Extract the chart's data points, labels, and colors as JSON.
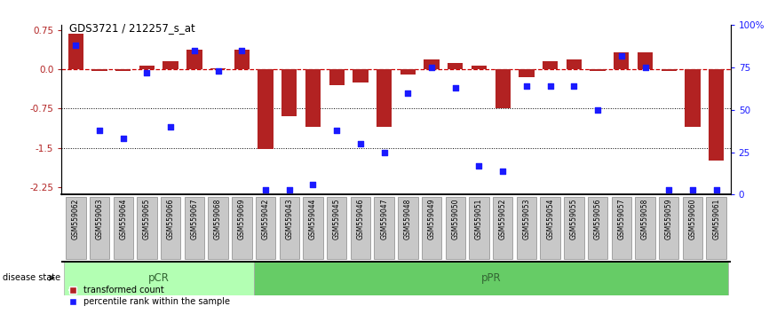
{
  "title": "GDS3721 / 212257_s_at",
  "samples": [
    "GSM559062",
    "GSM559063",
    "GSM559064",
    "GSM559065",
    "GSM559066",
    "GSM559067",
    "GSM559068",
    "GSM559069",
    "GSM559042",
    "GSM559043",
    "GSM559044",
    "GSM559045",
    "GSM559046",
    "GSM559047",
    "GSM559048",
    "GSM559049",
    "GSM559050",
    "GSM559051",
    "GSM559052",
    "GSM559053",
    "GSM559054",
    "GSM559055",
    "GSM559056",
    "GSM559057",
    "GSM559058",
    "GSM559059",
    "GSM559060",
    "GSM559061"
  ],
  "bar_values": [
    0.68,
    -0.03,
    -0.03,
    0.08,
    0.15,
    0.38,
    0.02,
    0.38,
    -1.52,
    -0.9,
    -1.1,
    -0.3,
    -0.25,
    -1.1,
    -0.1,
    0.2,
    0.13,
    0.07,
    -0.75,
    -0.15,
    0.15,
    0.2,
    -0.03,
    0.32,
    0.32,
    -0.03,
    -1.1,
    -1.75
  ],
  "blue_values": [
    88,
    38,
    33,
    72,
    40,
    85,
    73,
    85,
    3,
    3,
    6,
    38,
    30,
    25,
    60,
    75,
    63,
    17,
    14,
    64,
    64,
    64,
    50,
    82,
    75,
    3,
    3,
    3
  ],
  "pCR_count": 8,
  "group1_label": "pCR",
  "group2_label": "pPR",
  "disease_state_label": "disease state",
  "bar_color": "#b22222",
  "blue_color": "#1a1aff",
  "zero_line_color": "#cc0000",
  "dotted_line_color": "#000000",
  "ylim_left": [
    -2.4,
    0.85
  ],
  "ylim_right": [
    0,
    100
  ],
  "yticks_left": [
    0.75,
    0.0,
    -0.75,
    -1.5,
    -2.25
  ],
  "yticks_right": [
    100,
    75,
    50,
    25,
    0
  ],
  "legend_tc": "transformed count",
  "legend_pr": "percentile rank within the sample",
  "pCR_color": "#b3ffb3",
  "pPR_color": "#66cc66",
  "tick_bg_color": "#c8c8c8",
  "tick_edge_color": "#888888"
}
